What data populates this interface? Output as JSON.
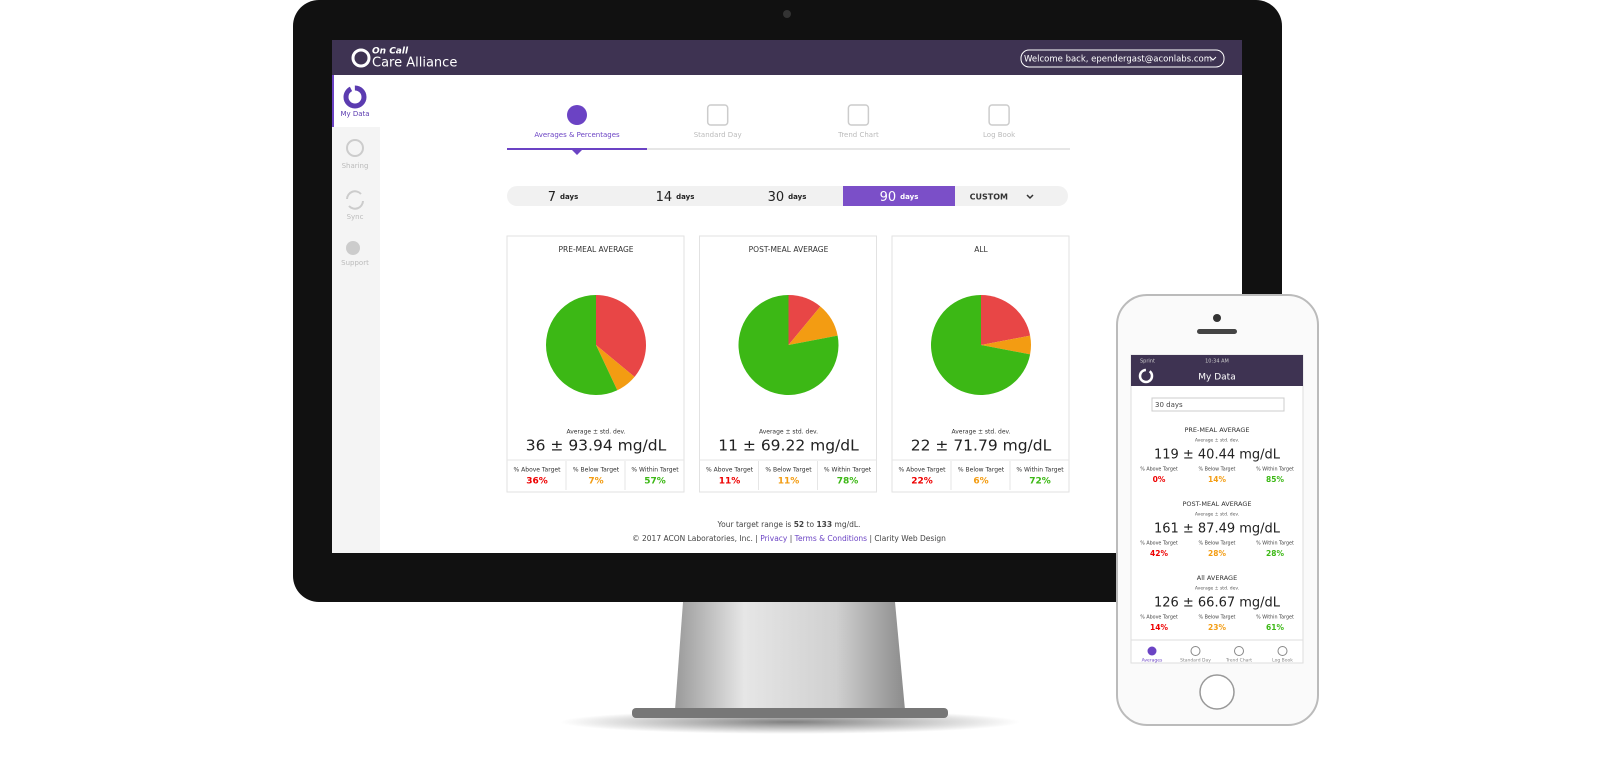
{
  "header": {
    "brand_top": "On Call",
    "brand": "Care Alliance",
    "user_menu": "Welcome back, ependergast@aconlabs.com"
  },
  "sidebar": [
    "My Data",
    "Sharing",
    "Sync",
    "Support"
  ],
  "tabs": [
    "Averages & Percentages",
    "Standard Day",
    "Trend Chart",
    "Log Book"
  ],
  "ranges": [
    {
      "number": "7",
      "unit": "days"
    },
    {
      "number": "14",
      "unit": "days"
    },
    {
      "number": "30",
      "unit": "days"
    },
    {
      "number": "90",
      "unit": "days"
    }
  ],
  "range_custom": "CUSTOM",
  "cards": [
    {
      "title": "PRE-MEAL AVERAGE",
      "caption": "Average ± std. dev.",
      "average": "36 ± 93.94 mg/dL",
      "stats": [
        {
          "label": "% Above Target",
          "value": 36,
          "value_label": "36%"
        },
        {
          "label": "% Below Target",
          "value": 7,
          "value_label": "7%"
        },
        {
          "label": "% Within Target",
          "value": 57,
          "value_label": "57%"
        }
      ]
    },
    {
      "title": "POST-MEAL AVERAGE",
      "caption": "Average ± std. dev.",
      "average": "11 ± 69.22 mg/dL",
      "stats": [
        {
          "label": "% Above Target",
          "value": 11,
          "value_label": "11%"
        },
        {
          "label": "% Below Target",
          "value": 11,
          "value_label": "11%"
        },
        {
          "label": "% Within Target",
          "value": 78,
          "value_label": "78%"
        }
      ]
    },
    {
      "title": "ALL",
      "caption": "Average ± std. dev.",
      "average": "22 ± 71.79 mg/dL",
      "stats": [
        {
          "label": "% Above Target",
          "value": 22,
          "value_label": "22%"
        },
        {
          "label": "% Below Target",
          "value": 6,
          "value_label": "6%"
        },
        {
          "label": "% Within Target",
          "value": 72,
          "value_label": "72%"
        }
      ]
    }
  ],
  "colors": [
    "#e84646",
    "#f39c12",
    "#3cb815"
  ],
  "footer": {
    "range_prefix": "Your target range is",
    "range_low": "52",
    "range_mid": "to",
    "range_high": "133",
    "range_suffix": "mg/dL.",
    "copyright": "© 2017 ACON Laboratories, Inc.",
    "separator": "|",
    "privacy": "Privacy",
    "terms": "Terms & Conditions",
    "credit": "Clarity Web Design"
  },
  "phone": {
    "carrier": "Sprint",
    "time": "10:34 AM",
    "title": "My Data",
    "select": "30 days",
    "sections": [
      {
        "title": "PRE-MEAL AVERAGE",
        "caption": "Average ± std. dev.",
        "average": "119 ± 40.44 mg/dL",
        "stats": [
          {
            "label": "% Above Target",
            "value": "0%"
          },
          {
            "label": "% Below Target",
            "value": "14%"
          },
          {
            "label": "% Within Target",
            "value": "85%"
          }
        ]
      },
      {
        "title": "POST-MEAL AVERAGE",
        "caption": "Average ± std. dev.",
        "average": "161 ± 87.49 mg/dL",
        "stats": [
          {
            "label": "% Above Target",
            "value": "42%"
          },
          {
            "label": "% Below Target",
            "value": "28%"
          },
          {
            "label": "% Within Target",
            "value": "28%"
          }
        ]
      },
      {
        "title": "All AVERAGE",
        "caption": "Average ± std. dev.",
        "average": "126 ± 66.67 mg/dL",
        "stats": [
          {
            "label": "% Above Target",
            "value": "14%"
          },
          {
            "label": "% Below Target",
            "value": "23%"
          },
          {
            "label": "% Within Target",
            "value": "61%"
          }
        ]
      }
    ],
    "nav": [
      "Averages",
      "Standard Day",
      "Trend Chart",
      "Log Book"
    ]
  }
}
